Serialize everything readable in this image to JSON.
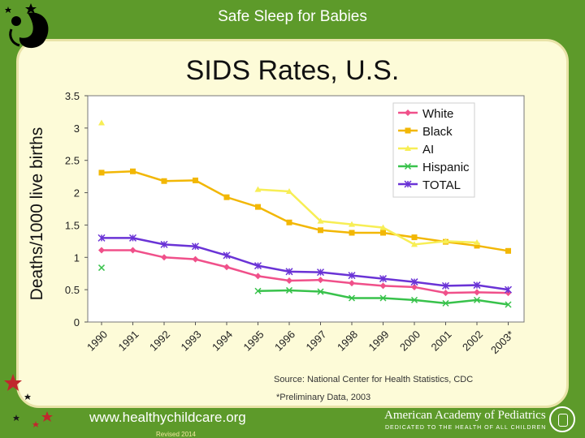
{
  "header": {
    "title": "Safe Sleep for Babies"
  },
  "footer": {
    "url": "www.healthychildcare.org",
    "revised": "Revised 2014",
    "org_name": "American Academy of Pediatrics",
    "org_tagline": "DEDICATED TO THE HEALTH OF ALL CHILDREN"
  },
  "colors": {
    "background": "#5d9a2a",
    "panel": "#fdfbd8"
  },
  "chart_data": {
    "type": "line",
    "title": "SIDS Rates, U.S.",
    "ylabel": "Deaths/1000 live births",
    "xlabel": "",
    "ylim": [
      0,
      3.5
    ],
    "yticks": [
      "0",
      "0.5",
      "1",
      "1.5",
      "2",
      "2.5",
      "3",
      "3.5"
    ],
    "categories": [
      "1990",
      "1991",
      "1992",
      "1993",
      "1994",
      "1995",
      "1996",
      "1997",
      "1998",
      "1999",
      "2000",
      "2001",
      "2002",
      "2003*"
    ],
    "grid": false,
    "legend_position": "top-right",
    "source_note": "Source: National Center for Health Statistics, CDC",
    "prelim_note": "*Preliminary Data, 2003",
    "series": [
      {
        "name": "White",
        "color": "#f0508a",
        "marker": "diamond",
        "values": [
          1.11,
          1.11,
          1.0,
          0.97,
          0.85,
          0.71,
          0.64,
          0.65,
          0.6,
          0.56,
          0.54,
          0.45,
          0.46,
          0.45
        ]
      },
      {
        "name": "Black",
        "color": "#f2b705",
        "marker": "square",
        "values": [
          2.31,
          2.33,
          2.18,
          2.19,
          1.93,
          1.78,
          1.54,
          1.42,
          1.38,
          1.38,
          1.31,
          1.24,
          1.18,
          1.1
        ]
      },
      {
        "name": "AI",
        "color": "#f7ee55",
        "marker": "triangle",
        "values": [
          3.08,
          null,
          null,
          null,
          null,
          2.05,
          2.02,
          1.56,
          1.51,
          1.46,
          1.2,
          1.25,
          1.23,
          null
        ]
      },
      {
        "name": "Hispanic",
        "color": "#38c24b",
        "marker": "x",
        "values": [
          0.84,
          null,
          null,
          null,
          null,
          0.48,
          0.49,
          0.47,
          0.37,
          0.37,
          0.34,
          0.29,
          0.34,
          0.27
        ]
      },
      {
        "name": "TOTAL",
        "color": "#6a33d6",
        "marker": "star",
        "values": [
          1.3,
          1.3,
          1.2,
          1.17,
          1.03,
          0.87,
          0.78,
          0.77,
          0.72,
          0.67,
          0.62,
          0.56,
          0.57,
          0.5
        ]
      }
    ]
  }
}
